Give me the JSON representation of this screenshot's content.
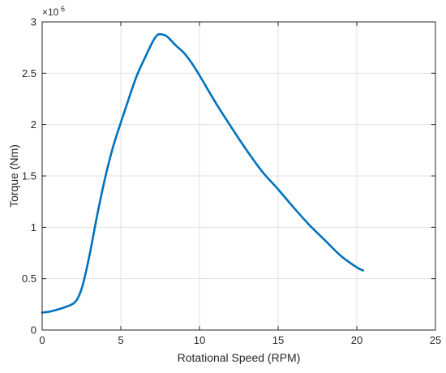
{
  "chart_data": {
    "type": "line",
    "title": "",
    "xlabel": "Rotational Speed (RPM)",
    "ylabel": "Torque (Nm)",
    "y_multiplier_label": "×10",
    "y_multiplier_exponent": "6",
    "xlim": [
      0,
      25
    ],
    "ylim": [
      0,
      3
    ],
    "xticks": [
      0,
      5,
      10,
      15,
      20,
      25
    ],
    "yticks": [
      0,
      0.5,
      1,
      1.5,
      2,
      2.5,
      3
    ],
    "xtick_labels": [
      "0",
      "5",
      "10",
      "15",
      "20",
      "25"
    ],
    "ytick_labels": [
      "0",
      "0.5",
      "1",
      "1.5",
      "2",
      "2.5",
      "3"
    ],
    "grid": true,
    "series": [
      {
        "color": "#0072BD",
        "x": [
          0,
          0.5,
          1.0,
          1.5,
          2.0,
          2.3,
          2.6,
          3.0,
          3.5,
          4.0,
          4.5,
          5.0,
          5.5,
          6.0,
          6.5,
          7.0,
          7.3,
          7.5,
          7.8,
          8.0,
          8.5,
          9.0,
          9.5,
          10.0,
          11.0,
          12.0,
          13.0,
          14.0,
          15.0,
          16.0,
          17.0,
          18.0,
          19.0,
          20.0,
          20.4
        ],
        "y": [
          0.17,
          0.18,
          0.2,
          0.225,
          0.26,
          0.32,
          0.45,
          0.72,
          1.12,
          1.48,
          1.78,
          2.02,
          2.25,
          2.47,
          2.64,
          2.8,
          2.87,
          2.88,
          2.87,
          2.85,
          2.77,
          2.7,
          2.6,
          2.48,
          2.22,
          1.98,
          1.75,
          1.54,
          1.37,
          1.19,
          1.02,
          0.87,
          0.72,
          0.61,
          0.58
        ]
      }
    ]
  }
}
